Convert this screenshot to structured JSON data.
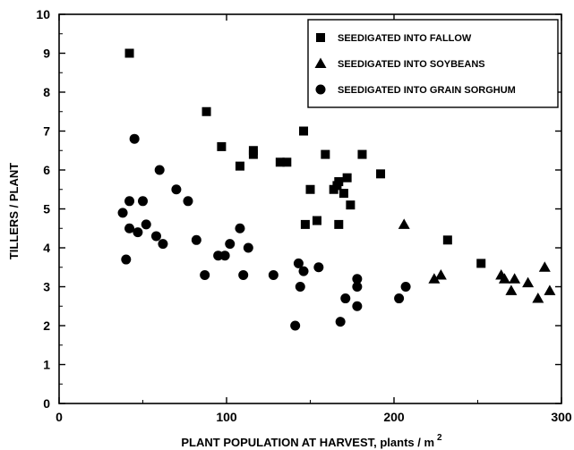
{
  "chart_data": {
    "type": "scatter",
    "title": "",
    "xlabel": "PLANT POPULATION AT HARVEST, plants / m",
    "xlabel_superscript": "2",
    "ylabel": "TILLERS / PLANT",
    "xlim": [
      0,
      300
    ],
    "ylim": [
      0,
      10
    ],
    "x_ticks": [
      0,
      100,
      200,
      300
    ],
    "y_ticks": [
      0,
      1,
      2,
      3,
      4,
      5,
      6,
      7,
      8,
      9,
      10
    ],
    "grid": false,
    "legend_position": "top-right",
    "series": [
      {
        "name": "SEEDIGATED INTO FALLOW",
        "marker": "square",
        "points": [
          [
            42,
            9.0
          ],
          [
            88,
            7.5
          ],
          [
            97,
            6.6
          ],
          [
            108,
            6.1
          ],
          [
            116,
            6.4
          ],
          [
            116,
            6.5
          ],
          [
            132,
            6.2
          ],
          [
            136,
            6.2
          ],
          [
            146,
            7.0
          ],
          [
            147,
            4.6
          ],
          [
            150,
            5.5
          ],
          [
            154,
            4.7
          ],
          [
            159,
            6.4
          ],
          [
            164,
            5.5
          ],
          [
            166,
            5.6
          ],
          [
            167,
            5.7
          ],
          [
            167,
            4.6
          ],
          [
            170,
            5.4
          ],
          [
            172,
            5.8
          ],
          [
            174,
            5.1
          ],
          [
            181,
            6.4
          ],
          [
            192,
            5.9
          ],
          [
            232,
            4.2
          ],
          [
            252,
            3.6
          ]
        ]
      },
      {
        "name": "SEEDIGATED INTO SOYBEANS",
        "marker": "triangle",
        "points": [
          [
            206,
            4.6
          ],
          [
            224,
            3.2
          ],
          [
            228,
            3.3
          ],
          [
            264,
            3.3
          ],
          [
            266,
            3.2
          ],
          [
            270,
            2.9
          ],
          [
            272,
            3.2
          ],
          [
            280,
            3.1
          ],
          [
            286,
            2.7
          ],
          [
            290,
            3.5
          ],
          [
            293,
            2.9
          ]
        ]
      },
      {
        "name": "SEEDIGATED INTO GRAIN SORGHUM",
        "marker": "circle",
        "points": [
          [
            38,
            4.9
          ],
          [
            40,
            3.7
          ],
          [
            42,
            5.2
          ],
          [
            42,
            4.5
          ],
          [
            45,
            6.8
          ],
          [
            47,
            4.4
          ],
          [
            50,
            5.2
          ],
          [
            52,
            4.6
          ],
          [
            58,
            4.3
          ],
          [
            60,
            6.0
          ],
          [
            62,
            4.1
          ],
          [
            70,
            5.5
          ],
          [
            77,
            5.2
          ],
          [
            82,
            4.2
          ],
          [
            87,
            3.3
          ],
          [
            95,
            3.8
          ],
          [
            99,
            3.8
          ],
          [
            102,
            4.1
          ],
          [
            108,
            4.5
          ],
          [
            110,
            3.3
          ],
          [
            113,
            4.0
          ],
          [
            128,
            3.3
          ],
          [
            141,
            2.0
          ],
          [
            143,
            3.6
          ],
          [
            144,
            3.0
          ],
          [
            146,
            3.4
          ],
          [
            155,
            3.5
          ],
          [
            168,
            2.1
          ],
          [
            171,
            2.7
          ],
          [
            178,
            3.2
          ],
          [
            178,
            3.0
          ],
          [
            178,
            2.5
          ],
          [
            203,
            2.7
          ],
          [
            207,
            3.0
          ]
        ]
      }
    ]
  }
}
